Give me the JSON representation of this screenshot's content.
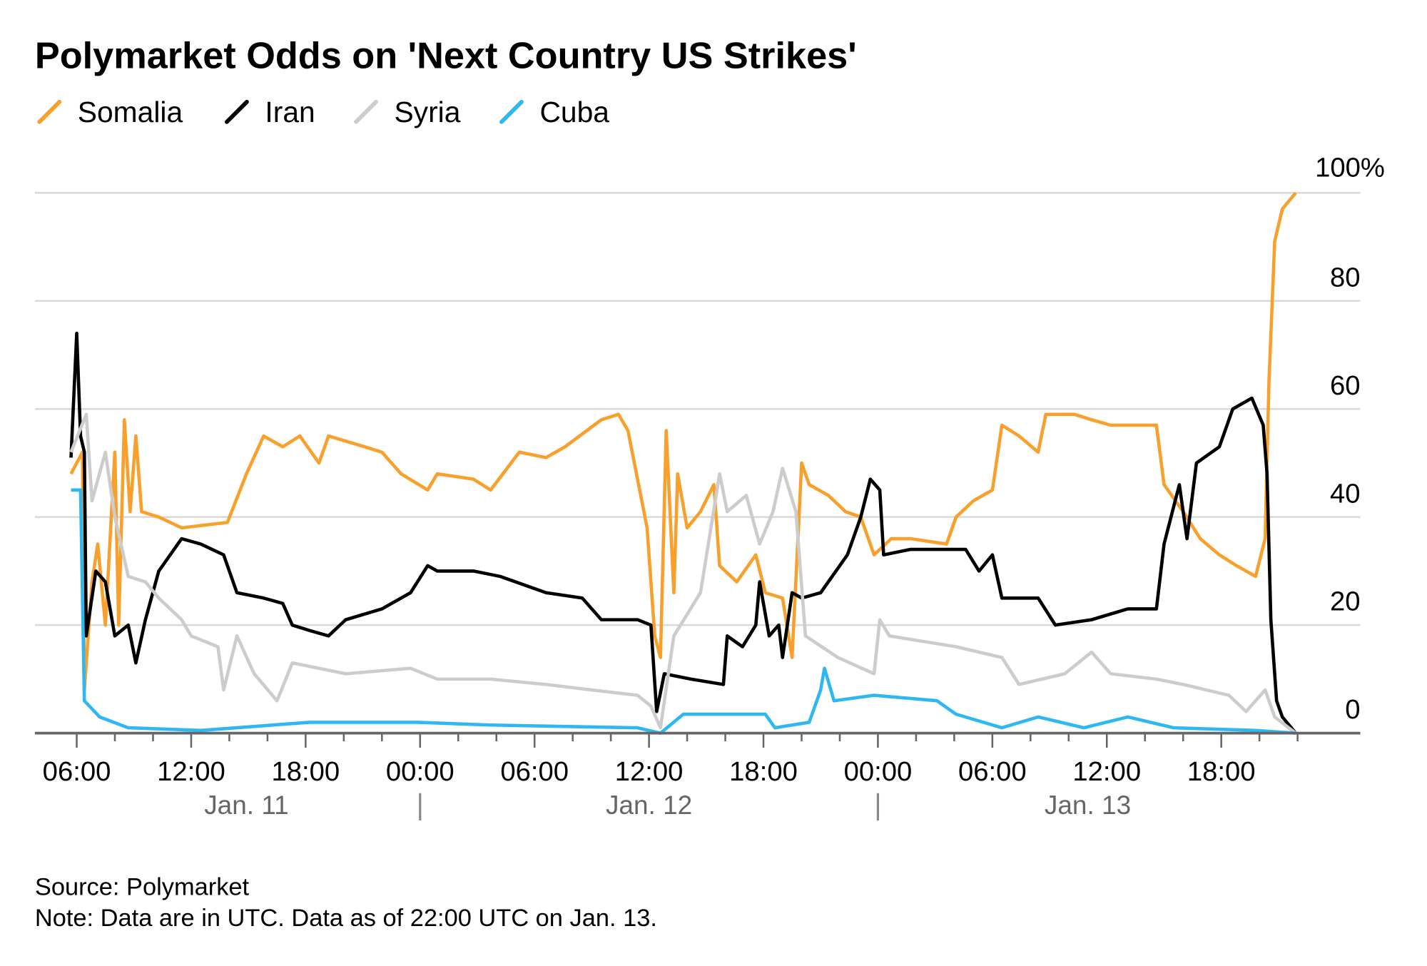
{
  "chart_data": {
    "type": "line",
    "title": "Polymarket Odds on 'Next Country US Strikes'",
    "xlabel": "",
    "ylabel": "",
    "x_unit": "hours since Jan. 10 00:00 UTC",
    "xlim": [
      3.8,
      73.3
    ],
    "ylim": [
      0,
      100
    ],
    "y_ticks": [
      {
        "value": 0,
        "label": "0"
      },
      {
        "value": 20,
        "label": "20"
      },
      {
        "value": 40,
        "label": "40"
      },
      {
        "value": 60,
        "label": "60"
      },
      {
        "value": 80,
        "label": "80"
      },
      {
        "value": 100,
        "label": "100%"
      }
    ],
    "x_ticks": [
      {
        "value": 6,
        "label": "06:00"
      },
      {
        "value": 12,
        "label": "12:00"
      },
      {
        "value": 18,
        "label": "18:00"
      },
      {
        "value": 24,
        "label": "00:00"
      },
      {
        "value": 30,
        "label": "06:00"
      },
      {
        "value": 36,
        "label": "12:00"
      },
      {
        "value": 42,
        "label": "18:00"
      },
      {
        "value": 48,
        "label": "00:00"
      },
      {
        "value": 54,
        "label": "06:00"
      },
      {
        "value": 60,
        "label": "12:00"
      },
      {
        "value": 66,
        "label": "18:00"
      }
    ],
    "day_labels": [
      {
        "value": 14.9,
        "label": "Jan. 11"
      },
      {
        "value": 36,
        "label": "Jan. 12"
      },
      {
        "value": 59,
        "label": "Jan. 13"
      }
    ],
    "day_separators": [
      24,
      48
    ],
    "grid": true,
    "legend_position": "top-left",
    "series": [
      {
        "name": "Somalia",
        "color": "#f9a02c",
        "points": [
          [
            5.7,
            48
          ],
          [
            6.3,
            52
          ],
          [
            6.4,
            8
          ],
          [
            6.8,
            28
          ],
          [
            7.1,
            35
          ],
          [
            7.5,
            20
          ],
          [
            8.0,
            52
          ],
          [
            8.2,
            20
          ],
          [
            8.5,
            58
          ],
          [
            8.8,
            41
          ],
          [
            9.1,
            55
          ],
          [
            9.4,
            41
          ],
          [
            10.3,
            40
          ],
          [
            11.5,
            38
          ],
          [
            13.9,
            39
          ],
          [
            14.9,
            48
          ],
          [
            15.8,
            55
          ],
          [
            16.8,
            53
          ],
          [
            17.7,
            55
          ],
          [
            18.7,
            50
          ],
          [
            19.2,
            55
          ],
          [
            21.1,
            53
          ],
          [
            22.0,
            52
          ],
          [
            23.0,
            48
          ],
          [
            24.4,
            45
          ],
          [
            24.9,
            48
          ],
          [
            26.8,
            47
          ],
          [
            27.7,
            45
          ],
          [
            29.2,
            52
          ],
          [
            30.6,
            51
          ],
          [
            31.6,
            53
          ],
          [
            33.5,
            58
          ],
          [
            34.4,
            59
          ],
          [
            34.9,
            56
          ],
          [
            35.9,
            38
          ],
          [
            36.3,
            18
          ],
          [
            36.6,
            14
          ],
          [
            36.9,
            56
          ],
          [
            37.3,
            26
          ],
          [
            37.5,
            48
          ],
          [
            38.0,
            38
          ],
          [
            38.7,
            41
          ],
          [
            39.4,
            46
          ],
          [
            39.7,
            31
          ],
          [
            40.6,
            28
          ],
          [
            41.6,
            33
          ],
          [
            42.1,
            26
          ],
          [
            43.0,
            25
          ],
          [
            43.5,
            14
          ],
          [
            44.0,
            50
          ],
          [
            44.4,
            46
          ],
          [
            45.4,
            44
          ],
          [
            46.3,
            41
          ],
          [
            47.1,
            40
          ],
          [
            47.8,
            33
          ],
          [
            48.7,
            36
          ],
          [
            49.7,
            36
          ],
          [
            51.6,
            35
          ],
          [
            52.1,
            40
          ],
          [
            53.0,
            43
          ],
          [
            54.0,
            45
          ],
          [
            54.5,
            57
          ],
          [
            55.4,
            55
          ],
          [
            56.4,
            52
          ],
          [
            56.8,
            59
          ],
          [
            58.3,
            59
          ],
          [
            59.2,
            58
          ],
          [
            60.2,
            57
          ],
          [
            62.1,
            57
          ],
          [
            62.6,
            57
          ],
          [
            63.0,
            46
          ],
          [
            64.0,
            41
          ],
          [
            64.9,
            36
          ],
          [
            65.9,
            33
          ],
          [
            66.8,
            31
          ],
          [
            67.8,
            29
          ],
          [
            68.3,
            36
          ],
          [
            68.5,
            65
          ],
          [
            68.8,
            91
          ],
          [
            69.2,
            97
          ],
          [
            69.9,
            100
          ]
        ]
      },
      {
        "name": "Iran",
        "color": "#000000",
        "points": [
          [
            5.7,
            51
          ],
          [
            6.0,
            74
          ],
          [
            6.2,
            55
          ],
          [
            6.4,
            52
          ],
          [
            6.5,
            18
          ],
          [
            7.0,
            30
          ],
          [
            7.5,
            28
          ],
          [
            8.0,
            18
          ],
          [
            8.7,
            20
          ],
          [
            9.1,
            13
          ],
          [
            9.6,
            21
          ],
          [
            10.3,
            30
          ],
          [
            11.5,
            36
          ],
          [
            12.5,
            35
          ],
          [
            13.7,
            33
          ],
          [
            14.4,
            26
          ],
          [
            15.8,
            25
          ],
          [
            16.8,
            24
          ],
          [
            17.3,
            20
          ],
          [
            18.2,
            19
          ],
          [
            19.2,
            18
          ],
          [
            20.1,
            21
          ],
          [
            22.0,
            23
          ],
          [
            23.5,
            26
          ],
          [
            24.4,
            31
          ],
          [
            24.9,
            30
          ],
          [
            26.8,
            30
          ],
          [
            28.2,
            29
          ],
          [
            30.6,
            26
          ],
          [
            32.5,
            25
          ],
          [
            33.5,
            21
          ],
          [
            35.4,
            21
          ],
          [
            36.1,
            20
          ],
          [
            36.4,
            4
          ],
          [
            36.8,
            11
          ],
          [
            38.2,
            10
          ],
          [
            39.9,
            9
          ],
          [
            40.1,
            18
          ],
          [
            40.9,
            16
          ],
          [
            41.6,
            20
          ],
          [
            41.8,
            28
          ],
          [
            42.3,
            18
          ],
          [
            42.8,
            20
          ],
          [
            43.0,
            14
          ],
          [
            43.5,
            26
          ],
          [
            44.0,
            25
          ],
          [
            45.0,
            26
          ],
          [
            46.4,
            33
          ],
          [
            47.1,
            40
          ],
          [
            47.6,
            47
          ],
          [
            48.1,
            45
          ],
          [
            48.3,
            33
          ],
          [
            49.7,
            34
          ],
          [
            52.6,
            34
          ],
          [
            53.3,
            30
          ],
          [
            54.0,
            33
          ],
          [
            54.5,
            25
          ],
          [
            56.4,
            25
          ],
          [
            57.3,
            20
          ],
          [
            59.2,
            21
          ],
          [
            61.1,
            23
          ],
          [
            62.6,
            23
          ],
          [
            63.0,
            35
          ],
          [
            63.8,
            46
          ],
          [
            64.2,
            36
          ],
          [
            64.7,
            50
          ],
          [
            65.9,
            53
          ],
          [
            66.6,
            60
          ],
          [
            67.6,
            62
          ],
          [
            68.2,
            57
          ],
          [
            68.4,
            48
          ],
          [
            68.6,
            21
          ],
          [
            68.9,
            6
          ],
          [
            69.2,
            3
          ],
          [
            69.9,
            0
          ]
        ]
      },
      {
        "name": "Syria",
        "color": "#cccccc",
        "points": [
          [
            5.7,
            52
          ],
          [
            6.5,
            59
          ],
          [
            6.8,
            43
          ],
          [
            7.5,
            52
          ],
          [
            8.0,
            40
          ],
          [
            8.7,
            29
          ],
          [
            9.6,
            28
          ],
          [
            10.3,
            25
          ],
          [
            11.5,
            21
          ],
          [
            12.0,
            18
          ],
          [
            13.4,
            16
          ],
          [
            13.7,
            8
          ],
          [
            14.4,
            18
          ],
          [
            15.3,
            11
          ],
          [
            16.5,
            6
          ],
          [
            17.3,
            13
          ],
          [
            20.1,
            11
          ],
          [
            23.5,
            12
          ],
          [
            24.9,
            10
          ],
          [
            27.7,
            10
          ],
          [
            30.6,
            9
          ],
          [
            33.0,
            8
          ],
          [
            35.4,
            7
          ],
          [
            36.1,
            5
          ],
          [
            36.6,
            1
          ],
          [
            37.3,
            18
          ],
          [
            38.7,
            26
          ],
          [
            39.7,
            48
          ],
          [
            40.1,
            41
          ],
          [
            41.1,
            44
          ],
          [
            41.8,
            35
          ],
          [
            42.5,
            41
          ],
          [
            43.0,
            49
          ],
          [
            43.7,
            41
          ],
          [
            44.2,
            18
          ],
          [
            45.9,
            14
          ],
          [
            47.8,
            11
          ],
          [
            48.1,
            21
          ],
          [
            48.6,
            18
          ],
          [
            52.1,
            16
          ],
          [
            54.5,
            14
          ],
          [
            55.4,
            9
          ],
          [
            57.8,
            11
          ],
          [
            59.2,
            15
          ],
          [
            60.2,
            11
          ],
          [
            62.6,
            10
          ],
          [
            64.0,
            9
          ],
          [
            66.4,
            7
          ],
          [
            67.3,
            4
          ],
          [
            68.3,
            8
          ],
          [
            68.8,
            3
          ],
          [
            69.9,
            0
          ]
        ]
      },
      {
        "name": "Cuba",
        "color": "#2eb7f2",
        "points": [
          [
            5.7,
            45
          ],
          [
            6.2,
            45
          ],
          [
            6.4,
            6
          ],
          [
            7.2,
            3
          ],
          [
            8.7,
            1
          ],
          [
            12.5,
            0.5
          ],
          [
            18.2,
            2
          ],
          [
            21.1,
            2
          ],
          [
            23.9,
            2
          ],
          [
            27.7,
            1.5
          ],
          [
            35.4,
            1
          ],
          [
            36.6,
            0
          ],
          [
            37.8,
            3.5
          ],
          [
            42.1,
            3.5
          ],
          [
            42.6,
            1
          ],
          [
            44.4,
            2
          ],
          [
            45.0,
            8
          ],
          [
            45.2,
            12
          ],
          [
            45.7,
            6
          ],
          [
            47.8,
            7
          ],
          [
            51.1,
            6
          ],
          [
            52.1,
            3.5
          ],
          [
            54.5,
            1
          ],
          [
            56.4,
            3
          ],
          [
            58.8,
            1
          ],
          [
            61.1,
            3
          ],
          [
            63.5,
            1
          ],
          [
            67.8,
            0.5
          ],
          [
            69.9,
            0
          ]
        ]
      }
    ],
    "source": "Source: Polymarket",
    "note": "Note: Data are in UTC. Data as of 22:00 UTC on Jan. 13."
  }
}
